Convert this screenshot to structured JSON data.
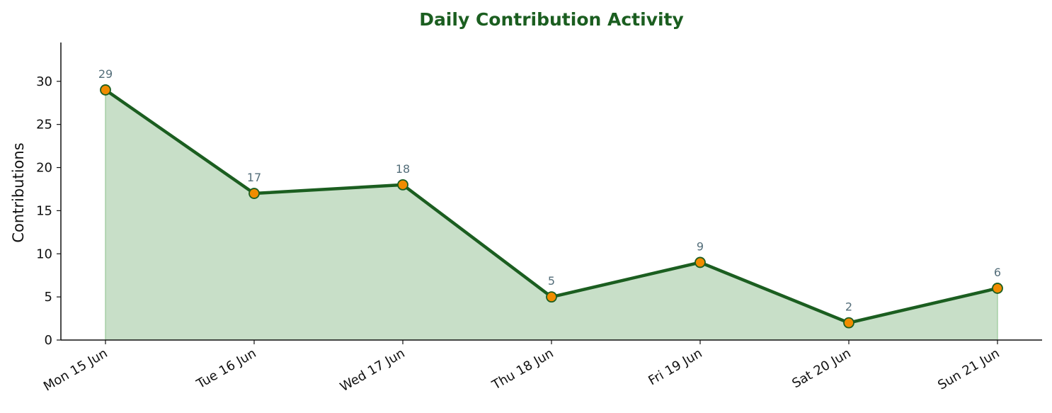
{
  "chart_data": {
    "type": "area",
    "title": "Daily Contribution Activity",
    "xlabel": "",
    "ylabel": "Contributions",
    "categories": [
      "Mon 15 Jun",
      "Tue 16 Jun",
      "Wed 17 Jun",
      "Thu 18 Jun",
      "Fri 19 Jun",
      "Sat 20 Jun",
      "Sun 21 Jun"
    ],
    "values": [
      29,
      17,
      18,
      5,
      9,
      2,
      6
    ],
    "data_labels": [
      "29",
      "17",
      "18",
      "5",
      "9",
      "2",
      "6"
    ],
    "ylim": [
      0,
      34.5
    ],
    "yticks": [
      0,
      5,
      10,
      15,
      20,
      25,
      30
    ],
    "grid": false,
    "legend": "none",
    "colors": {
      "line": "#1b5e20",
      "fill": "#c8dfc8",
      "marker": "#f08c00",
      "marker_edge": "#1b5e20",
      "title": "#1b5e20",
      "data_label": "#546e7a",
      "axis": "#111111"
    }
  }
}
